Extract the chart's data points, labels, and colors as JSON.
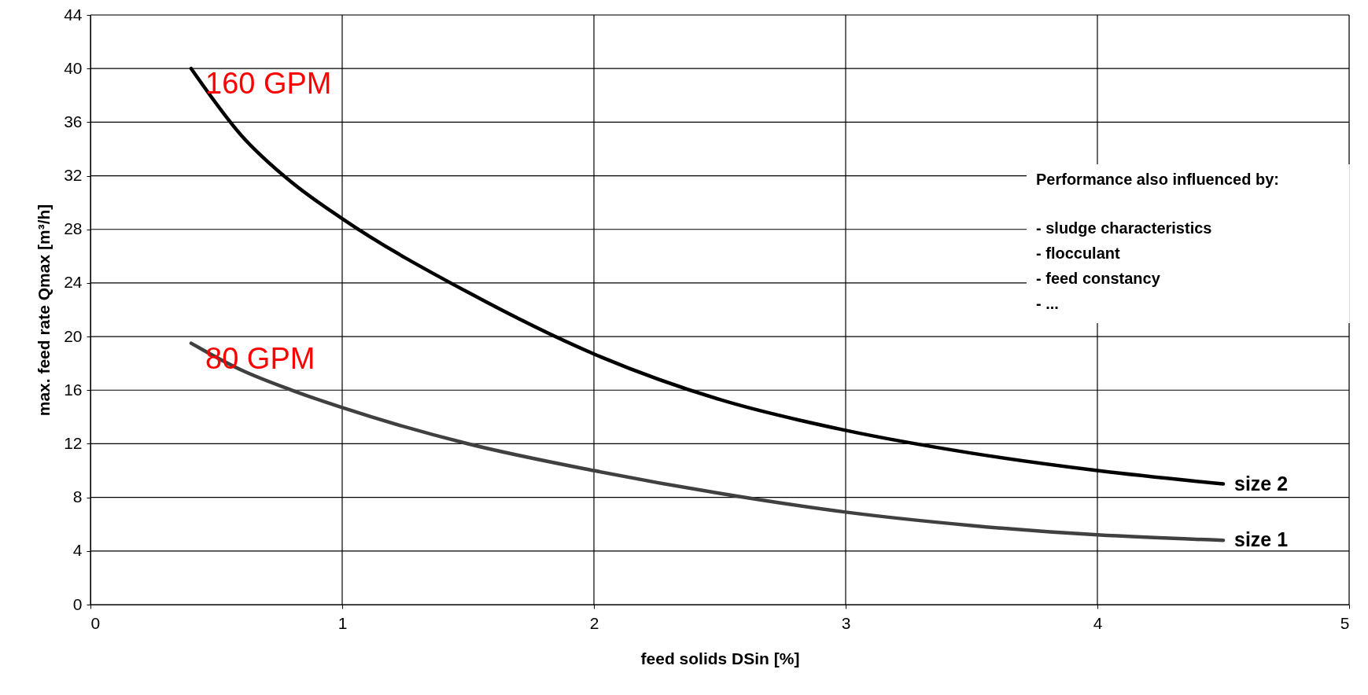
{
  "chart_data": {
    "type": "line",
    "xlabel": "feed solids DSin [%]",
    "ylabel": "max. feed rate Qmax [m³/h]",
    "xlim": [
      0,
      5
    ],
    "xticks": [
      0,
      1,
      2,
      3,
      4,
      5
    ],
    "ylim": [
      0,
      44
    ],
    "yticks": [
      0,
      4,
      8,
      12,
      16,
      20,
      24,
      28,
      32,
      36,
      40,
      44
    ],
    "grid": true,
    "line_style": "solid",
    "series": [
      {
        "name": "size 2",
        "color": "#000000",
        "x": [
          0.4,
          0.6,
          0.8,
          1.0,
          1.5,
          2.0,
          2.5,
          3.0,
          3.5,
          4.0,
          4.5
        ],
        "values": [
          40,
          35,
          31.5,
          28.8,
          23.3,
          18.7,
          15.3,
          13,
          11.3,
          10,
          9
        ]
      },
      {
        "name": "size 1",
        "color": "#404040",
        "x": [
          0.4,
          0.6,
          0.8,
          1.0,
          1.5,
          2.0,
          2.5,
          3.0,
          3.5,
          4.0,
          4.5
        ],
        "values": [
          19.5,
          17.5,
          16,
          14.7,
          12,
          10,
          8.3,
          6.9,
          5.9,
          5.2,
          4.8
        ]
      }
    ],
    "annotations": [
      {
        "text": "160 GPM",
        "x": 0.4,
        "y": 40
      },
      {
        "text": "80 GPM",
        "x": 0.4,
        "y": 19.5
      },
      "Performance also influenced by:",
      "- sludge characteristics",
      "- flocculant",
      "- feed constancy",
      "- ..."
    ]
  }
}
